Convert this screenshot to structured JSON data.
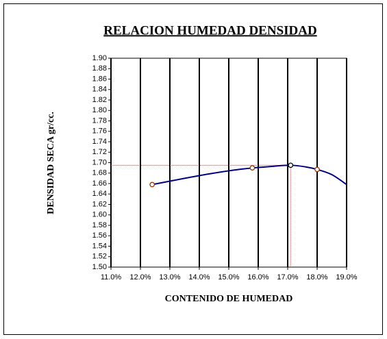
{
  "chart_data": {
    "type": "line",
    "title": "RELACION HUMEDAD DENSIDAD",
    "x_label": "CONTENIDO DE HUMEDAD",
    "y_label": "DENSIDAD SECA gr/cc.",
    "xlim": [
      11,
      19
    ],
    "ylim": [
      1.5,
      1.9
    ],
    "xticks": [
      {
        "value": 11,
        "label": "11.0%"
      },
      {
        "value": 12,
        "label": "12.0%"
      },
      {
        "value": 13,
        "label": "13.0%"
      },
      {
        "value": 14,
        "label": "14.0%"
      },
      {
        "value": 15,
        "label": "15.0%"
      },
      {
        "value": 16,
        "label": "16.0%"
      },
      {
        "value": 17,
        "label": "17.0%"
      },
      {
        "value": 18,
        "label": "18.0%"
      },
      {
        "value": 19,
        "label": "19.0%"
      }
    ],
    "yticks": [
      {
        "value": 1.5,
        "label": "1.50"
      },
      1.52,
      1.54,
      1.56,
      1.58,
      {
        "value": 1.6,
        "label": "1.60"
      },
      1.62,
      1.64,
      1.66,
      1.68,
      {
        "value": 1.7,
        "label": "1.70"
      },
      1.72,
      1.74,
      1.76,
      1.78,
      {
        "value": 1.8,
        "label": "1.80"
      },
      1.82,
      1.84,
      1.86,
      1.88,
      {
        "value": 1.9,
        "label": "1.90"
      }
    ],
    "grid": true,
    "series": [
      {
        "color": "#000080",
        "x": [
          12.4,
          13.5,
          14.5,
          15.5,
          16.5,
          17.1,
          17.6,
          18.0,
          18.5,
          19.0
        ],
        "values": [
          1.658,
          1.67,
          1.68,
          1.688,
          1.693,
          1.695,
          1.692,
          1.687,
          1.677,
          1.658
        ]
      },
      {
        "color": "#993300",
        "x": [
          12.4,
          15.8,
          18.0
        ],
        "values": [
          1.658,
          1.69,
          1.687
        ]
      },
      {
        "color": "#000000",
        "x": [
          17.1
        ],
        "values": [
          1.695
        ]
      }
    ]
  }
}
